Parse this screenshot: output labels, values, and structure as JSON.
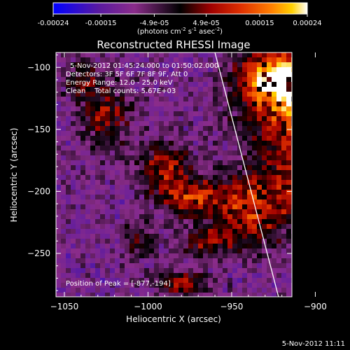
{
  "colorbar": {
    "ticks": [
      "-0.00024",
      "-0.00015",
      "-4.9e-05",
      "4.9e-05",
      "0.00015",
      "0.00024"
    ],
    "tick_values": [
      -0.00024,
      -0.00015,
      -4.9e-05,
      4.9e-05,
      0.00015,
      0.00024
    ],
    "range": [
      -0.00024,
      0.00024
    ],
    "units": "(photons cm",
    "units_sup1": "-2",
    "units_mid": " s",
    "units_sup2": "-1",
    "units_end": " asec",
    "units_sup3": "-2",
    "units_close": ")",
    "colors": [
      "#0000ff",
      "#5a1aa0",
      "#8a2c8a",
      "#000000",
      "#a00000",
      "#e03000",
      "#ff8000",
      "#ffd000",
      "#ffffff"
    ]
  },
  "chart_data": {
    "type": "heatmap",
    "title": "Reconstructed RHESSI Image",
    "xlabel": "Heliocentric X (arcsec)",
    "ylabel": "Heliocentric Y (arcsec)",
    "xlim": [
      -1055,
      -914
    ],
    "ylim": [
      -285,
      -88
    ],
    "xticks": [
      -1050,
      -1000,
      -950,
      -900
    ],
    "yticks": [
      -100,
      -150,
      -200,
      -250
    ],
    "xtick_labels": [
      "−1050",
      "−1000",
      "−950",
      "−900"
    ],
    "ytick_labels": [
      "−100",
      "−150",
      "−200",
      "−250"
    ],
    "annotations": [
      "5-Nov-2012 01:45:24.000 to 01:50:02.000",
      "Detectors: 3F 5F 6F 7F 8F 9F, Att 0",
      "Energy Range: 12.0 - 25.0 keV",
      "Clean    Total counts: 5.67E+03"
    ],
    "peak_label": "Position of Peak = [",
    "peak_value": "-877,-194",
    "peak_close": "]",
    "peak": [
      -877,
      -194
    ],
    "limb_line": [
      [
        -960,
        -88
      ],
      [
        -922,
        -285
      ]
    ]
  },
  "footer": {
    "timestamp": "5-Nov-2012 11:11"
  }
}
